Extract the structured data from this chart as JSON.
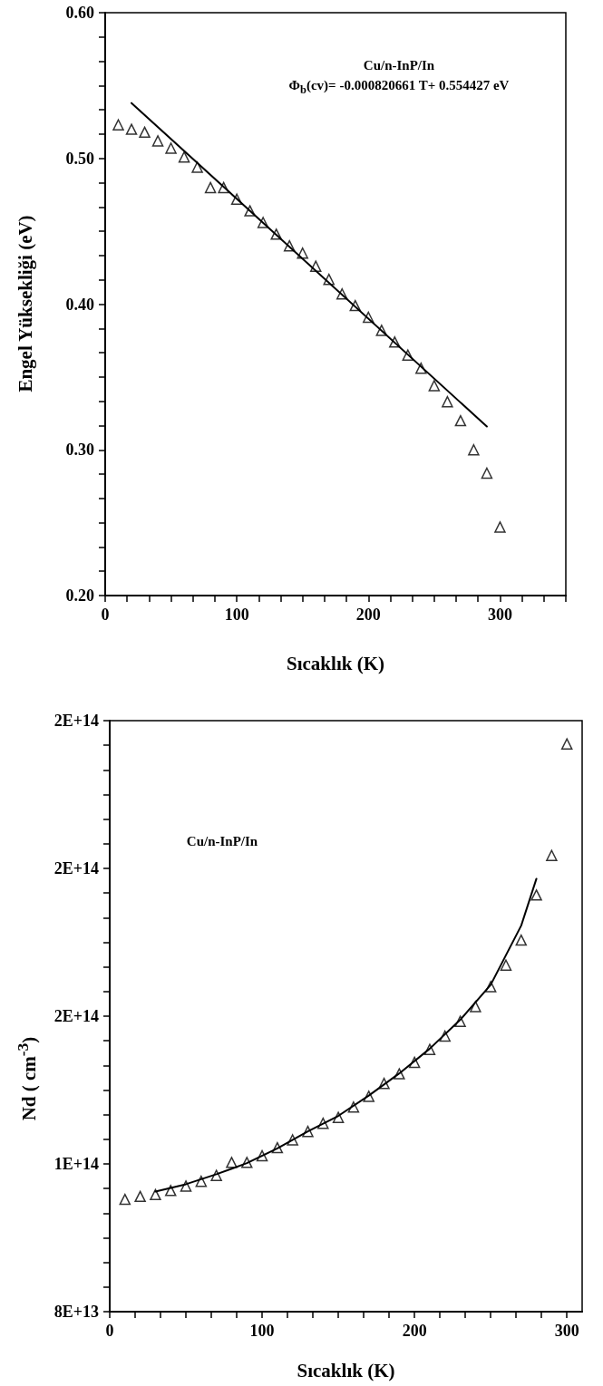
{
  "chart_data": [
    {
      "type": "scatter",
      "xlabel": "Sıcaklık (K)",
      "ylabel": "Engel Yüksekliği (eV)",
      "annotations": [
        "Cu/n-InP/In",
        "Φ$_{b}$(cv)= -0.000820661 T+ 0.554427 eV"
      ],
      "xlim": [
        0,
        350
      ],
      "ylim": [
        0.2,
        0.6
      ],
      "xticks": [
        0,
        {
          "value": 16.67,
          "label": null
        },
        {
          "value": 33.33,
          "label": null
        },
        {
          "value": 50,
          "label": null
        },
        {
          "value": 66.67,
          "label": null
        },
        {
          "value": 83.33,
          "label": null
        },
        100,
        {
          "value": 116.67,
          "label": null
        },
        {
          "value": 133.33,
          "label": null
        },
        {
          "value": 150,
          "label": null
        },
        {
          "value": 166.67,
          "label": null
        },
        {
          "value": 183.33,
          "label": null
        },
        200,
        {
          "value": 216.67,
          "label": null
        },
        {
          "value": 233.33,
          "label": null
        },
        {
          "value": 250,
          "label": null
        },
        {
          "value": 266.67,
          "label": null
        },
        {
          "value": 283.33,
          "label": null
        },
        300,
        {
          "value": 316.67,
          "label": null
        },
        {
          "value": 333.33,
          "label": null
        },
        {
          "value": 350,
          "label": null
        }
      ],
      "yticks": [
        {
          "value": 0.2,
          "label": "0.20"
        },
        {
          "value": 0.2167,
          "label": null
        },
        {
          "value": 0.2333,
          "label": null
        },
        {
          "value": 0.25,
          "label": null
        },
        {
          "value": 0.2667,
          "label": null
        },
        {
          "value": 0.2833,
          "label": null
        },
        {
          "value": 0.3,
          "label": "0.30"
        },
        {
          "value": 0.3167,
          "label": null
        },
        {
          "value": 0.3333,
          "label": null
        },
        {
          "value": 0.35,
          "label": null
        },
        {
          "value": 0.3667,
          "label": null
        },
        {
          "value": 0.3833,
          "label": null
        },
        {
          "value": 0.4,
          "label": "0.40"
        },
        {
          "value": 0.4167,
          "label": null
        },
        {
          "value": 0.4333,
          "label": null
        },
        {
          "value": 0.45,
          "label": null
        },
        {
          "value": 0.4667,
          "label": null
        },
        {
          "value": 0.4833,
          "label": null
        },
        {
          "value": 0.5,
          "label": "0.50"
        },
        {
          "value": 0.5167,
          "label": null
        },
        {
          "value": 0.5333,
          "label": null
        },
        {
          "value": 0.55,
          "label": null
        },
        {
          "value": 0.5667,
          "label": null
        },
        {
          "value": 0.5833,
          "label": null
        },
        {
          "value": 0.6,
          "label": "0.60"
        }
      ],
      "series": [
        {
          "color": "#000000",
          "marker": "triangle",
          "x": [
            10,
            20,
            30,
            40,
            50,
            60,
            70,
            80,
            90,
            100,
            110,
            120,
            130,
            140,
            150,
            160,
            170,
            180,
            190,
            200,
            210,
            220,
            230,
            240,
            250,
            260,
            270,
            280,
            290,
            300
          ],
          "values": [
            0.523,
            0.52,
            0.518,
            0.512,
            0.507,
            0.501,
            0.494,
            0.48,
            0.48,
            0.472,
            0.464,
            0.456,
            0.448,
            0.44,
            0.435,
            0.426,
            0.417,
            0.407,
            0.399,
            0.391,
            0.382,
            0.374,
            0.365,
            0.356,
            0.344,
            0.333,
            0.32,
            0.3,
            0.284,
            0.247
          ]
        },
        {
          "type": "line",
          "color": "#000000",
          "marker": "none",
          "line_style": "solid",
          "x": [
            20,
            290
          ],
          "values": [
            0.538,
            0.316
          ]
        }
      ]
    },
    {
      "type": "scatter",
      "xlabel": "Sıcaklık (K)",
      "ylabel": "Nd ( cm$^{-3}$)",
      "annotations": [
        "Cu/n-InP/In"
      ],
      "xlim": [
        0,
        310
      ],
      "ylim": [
        80000000000000.0,
        240000000000000.0
      ],
      "xticks": [
        0,
        {
          "value": 16.67,
          "label": null
        },
        {
          "value": 33.33,
          "label": null
        },
        {
          "value": 50,
          "label": null
        },
        {
          "value": 66.67,
          "label": null
        },
        {
          "value": 83.33,
          "label": null
        },
        100,
        {
          "value": 116.67,
          "label": null
        },
        {
          "value": 133.33,
          "label": null
        },
        {
          "value": 150,
          "label": null
        },
        {
          "value": 166.67,
          "label": null
        },
        {
          "value": 183.33,
          "label": null
        },
        200,
        {
          "value": 216.67,
          "label": null
        },
        {
          "value": 233.33,
          "label": null
        },
        {
          "value": 250,
          "label": null
        },
        {
          "value": 266.67,
          "label": null
        },
        {
          "value": 283.33,
          "label": null
        },
        300
      ],
      "yticks": [
        {
          "value": 80000000000000.0,
          "label": "8E+13"
        },
        {
          "value": 86670000000000.0,
          "label": null
        },
        {
          "value": 93330000000000.0,
          "label": null
        },
        {
          "value": 100000000000000.0,
          "label": null
        },
        {
          "value": 106670000000000.0,
          "label": null
        },
        {
          "value": 113330000000000.0,
          "label": null
        },
        {
          "value": 120000000000000.0,
          "label": "1E+14"
        },
        {
          "value": 126670000000000.0,
          "label": null
        },
        {
          "value": 133330000000000.0,
          "label": null
        },
        {
          "value": 140000000000000.0,
          "label": null
        },
        {
          "value": 146670000000000.0,
          "label": null
        },
        {
          "value": 153330000000000.0,
          "label": null
        },
        {
          "value": 160000000000000.0,
          "label": "2E+14"
        },
        {
          "value": 166670000000000.0,
          "label": null
        },
        {
          "value": 173330000000000.0,
          "label": null
        },
        {
          "value": 180000000000000.0,
          "label": null
        },
        {
          "value": 186670000000000.0,
          "label": null
        },
        {
          "value": 193330000000000.0,
          "label": null
        },
        {
          "value": 200000000000000.0,
          "label": "2E+14"
        },
        {
          "value": 206670000000000.0,
          "label": null
        },
        {
          "value": 213330000000000.0,
          "label": null
        },
        {
          "value": 220000000000000.0,
          "label": null
        },
        {
          "value": 226670000000000.0,
          "label": null
        },
        {
          "value": 233330000000000.0,
          "label": null
        },
        {
          "value": 240000000000000.0,
          "label": "2E+14"
        }
      ],
      "series": [
        {
          "color": "#000000",
          "marker": "triangle",
          "x": [
            10,
            20,
            30,
            40,
            50,
            60,
            70,
            80,
            90,
            100,
            110,
            120,
            130,
            140,
            150,
            160,
            170,
            180,
            190,
            200,
            210,
            220,
            230,
            240,
            250,
            260,
            270,
            280,
            290,
            300
          ],
          "values": [
            110400000000000.0,
            111200000000000.0,
            111700000000000.0,
            112800000000000.0,
            114000000000000.0,
            115300000000000.0,
            116900000000000.0,
            120400000000000.0,
            120400000000000.0,
            122200000000000.0,
            124400000000000.0,
            126500000000000.0,
            128800000000000.0,
            131000000000000.0,
            132600000000000.0,
            135400000000000.0,
            138300000000000.0,
            141800000000000.0,
            144400000000000.0,
            147500000000000.0,
            151000000000000.0,
            154600000000000.0,
            158600000000000.0,
            162600000000000.0,
            168000000000000.0,
            173800000000000.0,
            180600000000000.0,
            192800000000000.0,
            203500000000000.0,
            233700000000000.0
          ]
        },
        {
          "type": "line",
          "color": "#000000",
          "marker": "none",
          "line_style": "solid",
          "x": [
            30,
            50,
            70,
            90,
            110,
            130,
            150,
            170,
            190,
            210,
            230,
            250,
            270,
            280
          ],
          "values": [
            112500000000000.0,
            114500000000000.0,
            117200000000000.0,
            120200000000000.0,
            124200000000000.0,
            128800000000000.0,
            133000000000000.0,
            138500000000000.0,
            144500000000000.0,
            151200000000000.0,
            159000000000000.0,
            168500000000000.0,
            184500000000000.0,
            197200000000000.0
          ]
        }
      ]
    }
  ]
}
